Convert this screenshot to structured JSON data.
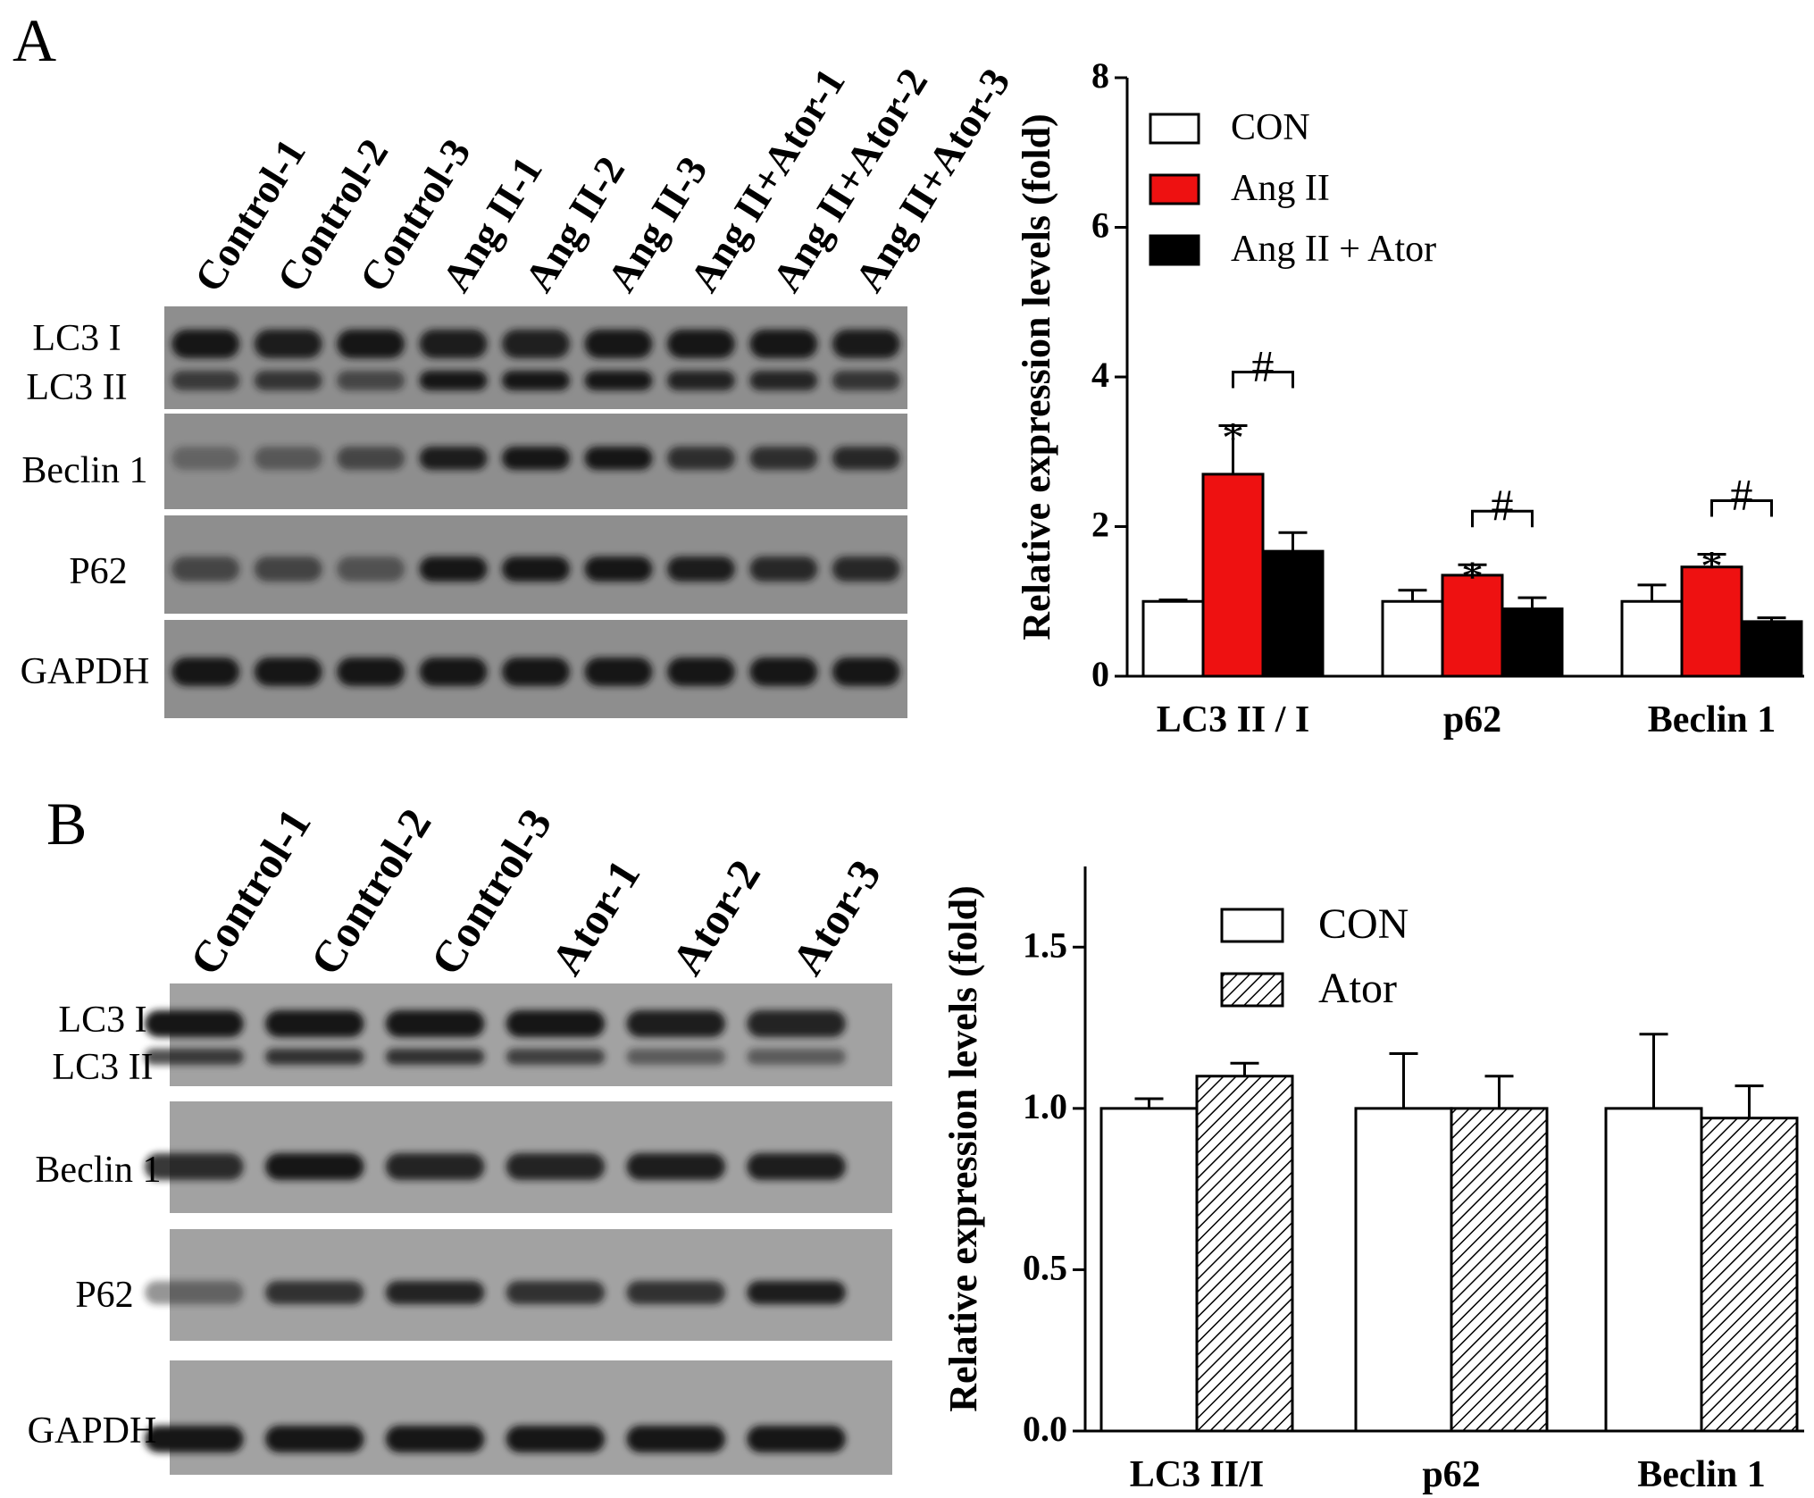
{
  "panels": [
    {
      "letter": "A",
      "blot": {
        "lanes": [
          "Control-1",
          "Control-2",
          "Control-3",
          "Ang II-1",
          "Ang II-2",
          "Ang II-3",
          "Ang II+Ator-1",
          "Ang II+Ator-2",
          "Ang II+Ator-3"
        ],
        "strips": [
          {
            "labels": [
              "LC3 I",
              "LC3 II"
            ]
          },
          {
            "labels": [
              "Beclin 1"
            ]
          },
          {
            "labels": [
              "P62"
            ]
          },
          {
            "labels": [
              "GAPDH"
            ]
          }
        ]
      },
      "chart": {
        "legend": [
          "CON",
          "Ang II",
          "Ang II + Ator"
        ],
        "significance": {
          "star": "*",
          "hash": "#"
        }
      }
    },
    {
      "letter": "B",
      "blot": {
        "lanes": [
          "Control-1",
          "Control-2",
          "Control-3",
          "Ator-1",
          "Ator-2",
          "Ator-3"
        ],
        "strips": [
          {
            "labels": [
              "LC3 I",
              "LC3 II"
            ]
          },
          {
            "labels": [
              "Beclin 1"
            ]
          },
          {
            "labels": [
              "P62"
            ]
          },
          {
            "labels": [
              "GAPDH"
            ]
          }
        ]
      },
      "chart": {
        "legend": [
          "CON",
          "Ator"
        ]
      }
    }
  ],
  "chart_data": [
    {
      "type": "bar",
      "categories": [
        "LC3 II / I",
        "p62",
        "Beclin 1"
      ],
      "series": [
        {
          "name": "CON",
          "values": [
            1.0,
            1.0,
            1.0
          ],
          "errors": [
            0.02,
            0.15,
            0.22
          ],
          "color": "#ffffff"
        },
        {
          "name": "Ang II",
          "values": [
            2.7,
            1.35,
            1.46
          ],
          "errors": [
            0.65,
            0.14,
            0.17
          ],
          "color": "#ee1111"
        },
        {
          "name": "Ang II + Ator",
          "values": [
            1.67,
            0.9,
            0.73
          ],
          "errors": [
            0.25,
            0.15,
            0.05
          ],
          "color": "#000000"
        }
      ],
      "xlabel": "",
      "ylabel": "Relative expression levels (fold)",
      "ylim": [
        0,
        8
      ],
      "yticks": [
        0,
        2,
        4,
        6,
        8
      ],
      "grid": false,
      "legend_position": "top-left",
      "annotations": [
        {
          "category": "LC3 II / I",
          "series": "Ang II",
          "mark": "*"
        },
        {
          "category": "p62",
          "series": "Ang II",
          "mark": "*"
        },
        {
          "category": "Beclin 1",
          "series": "Ang II",
          "mark": "*"
        },
        {
          "category": "LC3 II / I",
          "between": [
            "Ang II",
            "Ang II + Ator"
          ],
          "mark": "#"
        },
        {
          "category": "p62",
          "between": [
            "Ang II",
            "Ang II + Ator"
          ],
          "mark": "#"
        },
        {
          "category": "Beclin 1",
          "between": [
            "Ang II",
            "Ang II + Ator"
          ],
          "mark": "#"
        }
      ]
    },
    {
      "type": "bar",
      "categories": [
        "LC3 II/I",
        "p62",
        "Beclin 1"
      ],
      "series": [
        {
          "name": "CON",
          "values": [
            1.0,
            1.0,
            1.0
          ],
          "errors": [
            0.03,
            0.17,
            0.23
          ],
          "color": "#ffffff"
        },
        {
          "name": "Ator",
          "values": [
            1.1,
            1.0,
            0.97
          ],
          "errors": [
            0.04,
            0.1,
            0.1
          ],
          "color": "hatched"
        }
      ],
      "xlabel": "",
      "ylabel": "Relative expression levels (fold)",
      "ylim": [
        0,
        1.75
      ],
      "yticks": [
        "0.0",
        "0.5",
        "1.0",
        "1.5"
      ],
      "grid": false,
      "legend_position": "top-center"
    }
  ]
}
